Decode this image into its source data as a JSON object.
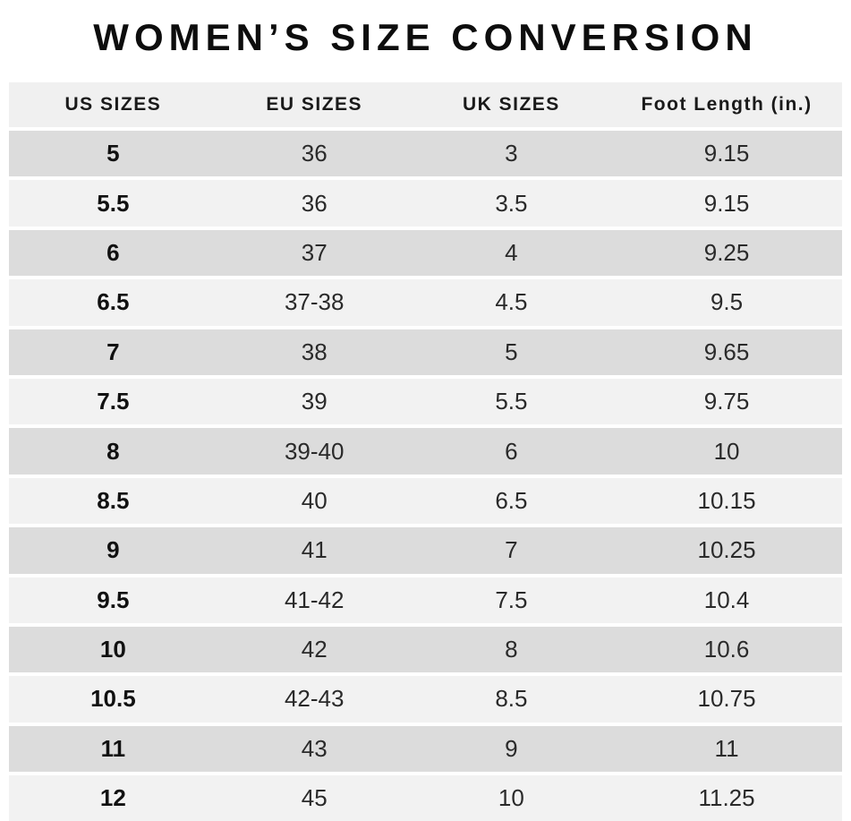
{
  "title": "WOMEN’S SIZE CONVERSION",
  "colors": {
    "row_dark": "#dcdcdc",
    "row_light": "#f2f2f2",
    "header_bg": "#f0f0f0",
    "title_color": "#0d0d0d"
  },
  "chart_data": {
    "type": "table",
    "title": "WOMEN’S SIZE CONVERSION",
    "columns": [
      "US SIZES",
      "EU SIZES",
      "UK SIZES",
      "Foot Length (in.)"
    ],
    "rows": [
      [
        "5",
        "36",
        "3",
        "9.15"
      ],
      [
        "5.5",
        "36",
        "3.5",
        "9.15"
      ],
      [
        "6",
        "37",
        "4",
        "9.25"
      ],
      [
        "6.5",
        "37-38",
        "4.5",
        "9.5"
      ],
      [
        "7",
        "38",
        "5",
        "9.65"
      ],
      [
        "7.5",
        "39",
        "5.5",
        "9.75"
      ],
      [
        "8",
        "39-40",
        "6",
        "10"
      ],
      [
        "8.5",
        "40",
        "6.5",
        "10.15"
      ],
      [
        "9",
        "41",
        "7",
        "10.25"
      ],
      [
        "9.5",
        "41-42",
        "7.5",
        "10.4"
      ],
      [
        "10",
        "42",
        "8",
        "10.6"
      ],
      [
        "10.5",
        "42-43",
        "8.5",
        "10.75"
      ],
      [
        "11",
        "43",
        "9",
        "11"
      ],
      [
        "12",
        "45",
        "10",
        "11.25"
      ]
    ],
    "layout": {
      "row_striping": "alternating dark/light starting dark",
      "first_column_bold": true,
      "alignment": "center"
    }
  }
}
